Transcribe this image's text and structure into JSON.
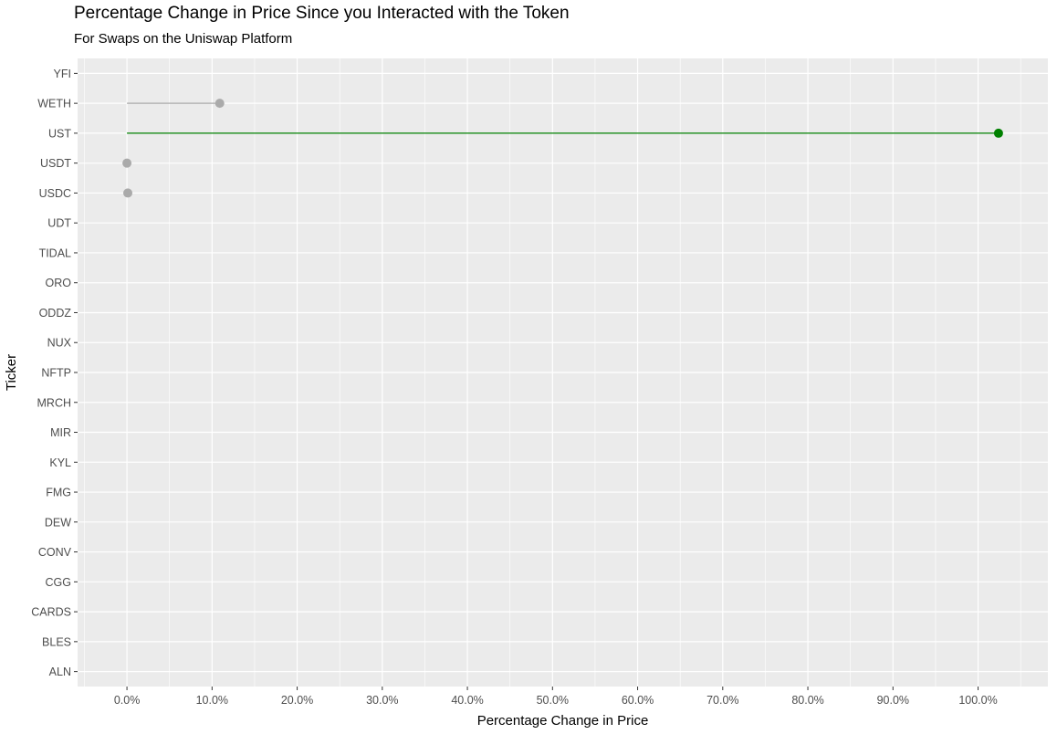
{
  "chart_data": {
    "type": "lollipop",
    "title": "Percentage Change in Price Since you Interacted with the Token",
    "subtitle": "For Swaps on the Uniswap Platform",
    "xlabel": "Percentage Change in Price",
    "ylabel": "Ticker",
    "xlim": [
      -5.8,
      108.2
    ],
    "x_ticks": [
      0,
      10,
      20,
      30,
      40,
      50,
      60,
      70,
      80,
      90,
      100
    ],
    "x_tick_labels": [
      "0.0%",
      "10.0%",
      "20.0%",
      "30.0%",
      "40.0%",
      "50.0%",
      "60.0%",
      "70.0%",
      "80.0%",
      "90.0%",
      "100.0%"
    ],
    "categories": [
      "YFI",
      "WETH",
      "UST",
      "USDT",
      "USDC",
      "UDT",
      "TIDAL",
      "ORO",
      "ODDZ",
      "NUX",
      "NFTP",
      "MRCH",
      "MIR",
      "KYL",
      "FMG",
      "DEW",
      "CONV",
      "CGG",
      "CARDS",
      "BLES",
      "ALN"
    ],
    "points": [
      {
        "ticker": "WETH",
        "value": 10.9,
        "color": "#aaaaaa"
      },
      {
        "ticker": "UST",
        "value": 102.4,
        "color": "#008000"
      },
      {
        "ticker": "USDT",
        "value": 0.0,
        "color": "#aaaaaa"
      },
      {
        "ticker": "USDC",
        "value": 0.1,
        "color": "#aaaaaa"
      }
    ],
    "grid": true,
    "panel_background": "#ebebeb",
    "grid_color": "#ffffff"
  }
}
